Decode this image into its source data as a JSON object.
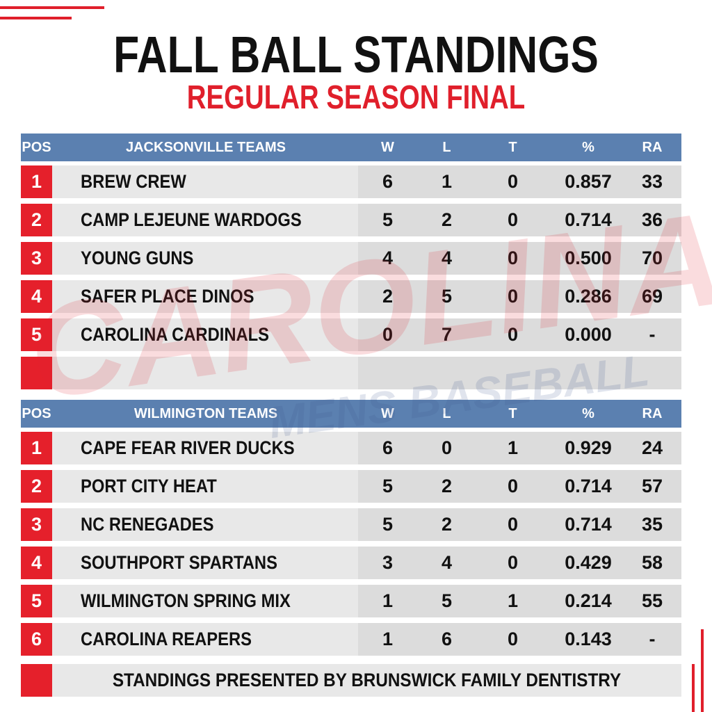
{
  "header": {
    "title": "FALL BALL STANDINGS",
    "subtitle": "REGULAR SEASON FINAL"
  },
  "watermark": {
    "brand": "CAROLINA",
    "tagline": "MENS BASEBALL"
  },
  "tables": [
    {
      "columns": [
        "POS",
        "JACKSONVILLE TEAMS",
        "W",
        "L",
        "T",
        "%",
        "RA"
      ],
      "rows": [
        [
          "1",
          "BREW CREW",
          "6",
          "1",
          "0",
          "0.857",
          "33"
        ],
        [
          "2",
          "CAMP LEJEUNE WARDOGS",
          "5",
          "2",
          "0",
          "0.714",
          "36"
        ],
        [
          "3",
          "YOUNG GUNS",
          "4",
          "4",
          "0",
          "0.500",
          "70"
        ],
        [
          "4",
          "SAFER PLACE DINOS",
          "2",
          "5",
          "0",
          "0.286",
          "69"
        ],
        [
          "5",
          "CAROLINA CARDINALS",
          "0",
          "7",
          "0",
          "0.000",
          "-"
        ]
      ]
    },
    {
      "columns": [
        "POS",
        "WILMINGTON TEAMS",
        "W",
        "L",
        "T",
        "%",
        "RA"
      ],
      "rows": [
        [
          "1",
          "CAPE FEAR RIVER DUCKS",
          "6",
          "0",
          "1",
          "0.929",
          "24"
        ],
        [
          "2",
          "PORT CITY HEAT",
          "5",
          "2",
          "0",
          "0.714",
          "57"
        ],
        [
          "3",
          "NC RENEGADES",
          "5",
          "2",
          "0",
          "0.714",
          "35"
        ],
        [
          "4",
          "SOUTHPORT SPARTANS",
          "3",
          "4",
          "0",
          "0.429",
          "58"
        ],
        [
          "5",
          "WILMINGTON SPRING MIX",
          "1",
          "5",
          "1",
          "0.214",
          "55"
        ],
        [
          "6",
          "CAROLINA REAPERS",
          "1",
          "6",
          "0",
          "0.143",
          "-"
        ]
      ]
    }
  ],
  "footer": "STANDINGS PRESENTED BY BRUNSWICK FAMILY DENTISTRY"
}
